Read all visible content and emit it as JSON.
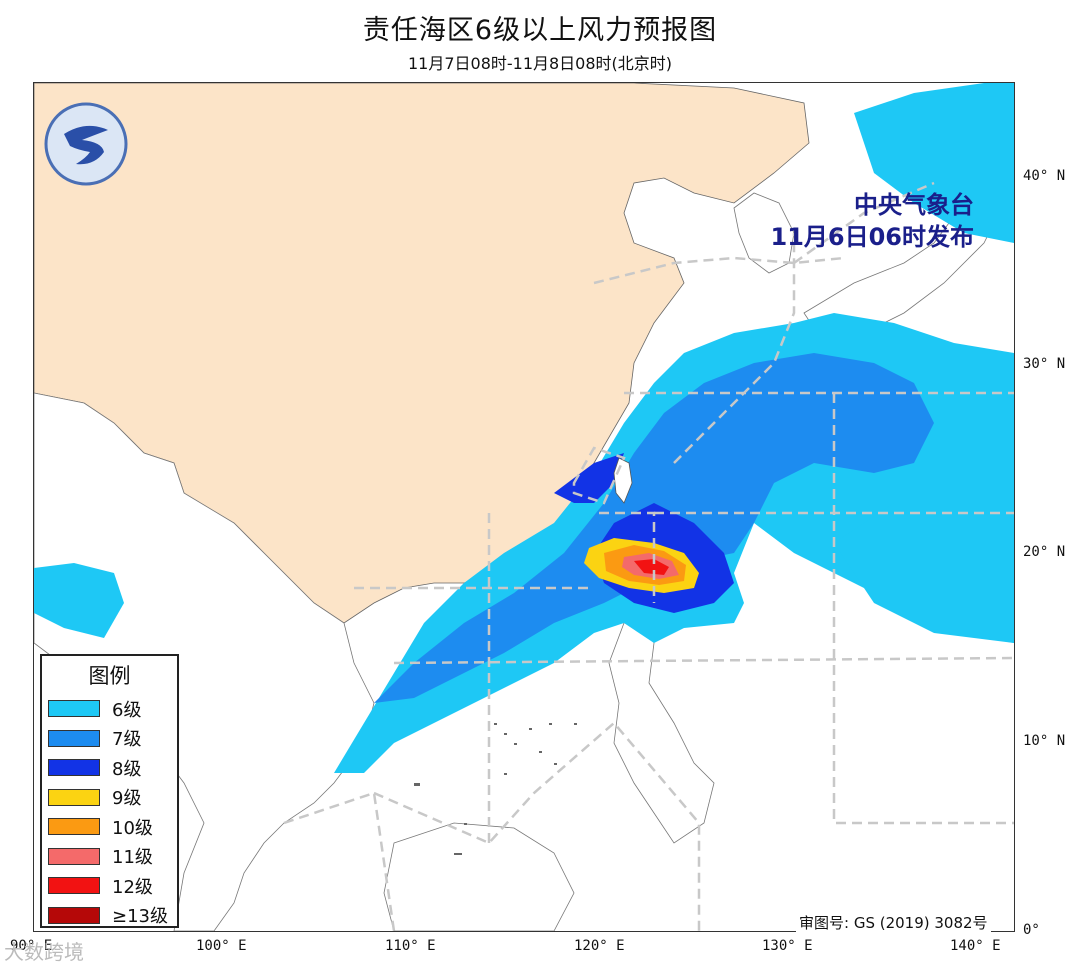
{
  "title": "责任海区6级以上风力预报图",
  "subtitle": "11月7日08时-11月8日08时(北京时)",
  "issuer": {
    "line1": "中央气象台",
    "line2": "11月6日06时发布"
  },
  "legend": {
    "title": "图例",
    "items": [
      {
        "label": "6级",
        "color": "#1ec8f5"
      },
      {
        "label": "7级",
        "color": "#1d8cf0"
      },
      {
        "label": "8级",
        "color": "#1233e6"
      },
      {
        "label": "9级",
        "color": "#fbd312"
      },
      {
        "label": "10级",
        "color": "#fb9a12"
      },
      {
        "label": "11级",
        "color": "#f46a6a"
      },
      {
        "label": "12级",
        "color": "#f21212"
      },
      {
        "label": "≥13级",
        "color": "#b50808"
      }
    ]
  },
  "axes": {
    "lat_labels": [
      "40° N",
      "30° N",
      "20° N",
      "10° N",
      "0°"
    ],
    "lon_labels": [
      "90° E",
      "100° E",
      "110° E",
      "120° E",
      "130° E",
      "140° E"
    ]
  },
  "review_number": "审图号: GS (2019) 3082号",
  "watermark": "大数跨境",
  "colors": {
    "land_china": "#fce4c8",
    "issuer_text": "#1a1f8a",
    "grid_dash": "#c8c8c8"
  }
}
